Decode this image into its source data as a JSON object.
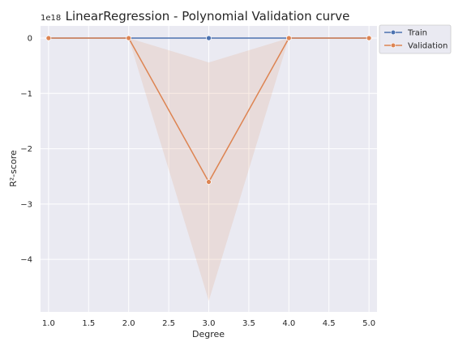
{
  "chart_data": {
    "type": "line",
    "title": "LinearRegression - Polynomial Validation curve",
    "xlabel": "Degree",
    "ylabel": "R²-score",
    "y_offset_label": "1e18",
    "xlim": [
      0.9,
      5.1
    ],
    "ylim": [
      -4.95,
      0.22
    ],
    "y_scale_factor": 1e+18,
    "x_ticks": [
      1.0,
      1.5,
      2.0,
      2.5,
      3.0,
      3.5,
      4.0,
      4.5,
      5.0
    ],
    "x_tick_labels": [
      "1.0",
      "1.5",
      "2.0",
      "2.5",
      "3.0",
      "3.5",
      "4.0",
      "4.5",
      "5.0"
    ],
    "y_ticks": [
      0,
      -1,
      -2,
      -3,
      -4
    ],
    "y_tick_labels": [
      "0",
      "−1",
      "−2",
      "−3",
      "−4"
    ],
    "grid": true,
    "legend_placement": "outside-top-right",
    "x": [
      1,
      2,
      3,
      4,
      5
    ],
    "series": [
      {
        "name": "Train",
        "color": "#4c72b0",
        "values": [
          0,
          0,
          0,
          0,
          0
        ],
        "lower": [
          0,
          0,
          0,
          0,
          0
        ],
        "upper": [
          0,
          0,
          0,
          0,
          0
        ]
      },
      {
        "name": "Validation",
        "color": "#dd8452",
        "values": [
          0,
          0,
          -2.6,
          0,
          0
        ],
        "lower": [
          0,
          0,
          -4.75,
          0,
          0
        ],
        "upper": [
          0,
          0,
          -0.44,
          0,
          0
        ]
      }
    ]
  }
}
